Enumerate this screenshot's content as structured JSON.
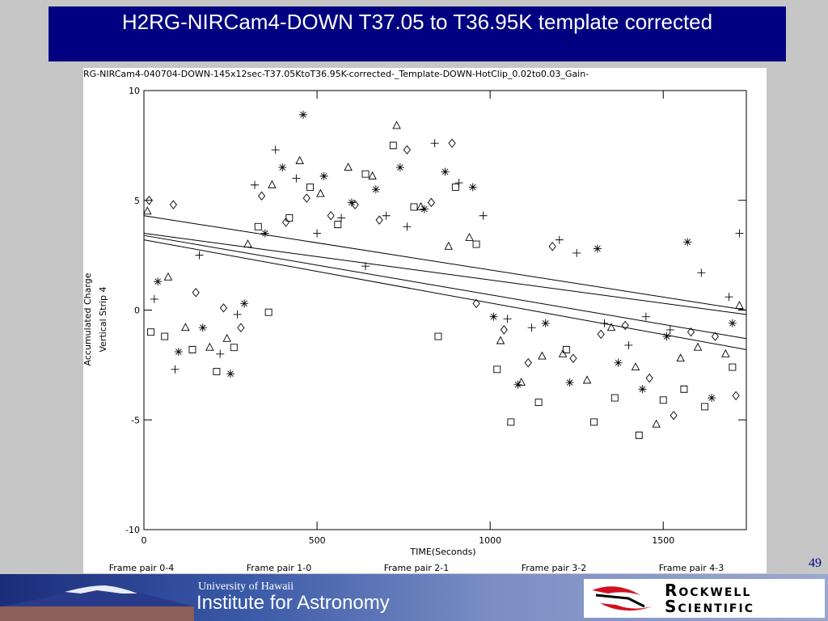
{
  "slide": {
    "title": "H2RG-NIRCam4-DOWN T37.05 to T36.95K template corrected",
    "page_number": "49"
  },
  "chart_data": {
    "type": "scatter",
    "subtitle": "RG-NIRCam4-040704-DOWN-145x12sec-T37.05KtoT36.95K-corrected-_Template-DOWN-HotClip_0.02to0.03_Gain-",
    "xlabel": "TIME(Seconds)",
    "ylabel": [
      "Accumulated Charge",
      "Vertical Strip 4"
    ],
    "xlim": [
      0,
      1740
    ],
    "ylim": [
      -10,
      10
    ],
    "xticks": [
      0,
      500,
      1000,
      1500
    ],
    "yticks": [
      -10,
      -5,
      0,
      5,
      10
    ],
    "color": "#000000",
    "series": [
      {
        "marker": "square",
        "x": [
          20,
          60,
          140,
          210,
          260,
          330,
          360,
          420,
          480,
          560,
          640,
          720,
          780,
          850,
          900,
          960,
          1020,
          1060,
          1140,
          1220,
          1300,
          1360,
          1430,
          1500,
          1560,
          1620,
          1700
        ],
        "values": [
          -1.0,
          -1.2,
          -1.8,
          -2.8,
          -1.7,
          3.8,
          -0.1,
          4.2,
          5.6,
          3.9,
          6.2,
          7.5,
          4.7,
          -1.2,
          5.6,
          3.0,
          -2.7,
          -5.1,
          -4.2,
          -1.8,
          -5.1,
          -4.0,
          -5.7,
          -4.1,
          -3.6,
          -4.4,
          -2.6
        ]
      },
      {
        "marker": "triangle",
        "x": [
          10,
          70,
          120,
          190,
          240,
          300,
          370,
          450,
          510,
          590,
          660,
          730,
          800,
          880,
          940,
          1030,
          1090,
          1150,
          1210,
          1280,
          1350,
          1420,
          1480,
          1550,
          1600,
          1680,
          1720
        ],
        "values": [
          4.5,
          1.5,
          -0.8,
          -1.7,
          -1.3,
          3.0,
          5.7,
          6.8,
          5.3,
          6.5,
          6.1,
          8.4,
          4.7,
          2.9,
          3.3,
          -1.4,
          -3.3,
          -2.1,
          -2.0,
          -3.2,
          -0.8,
          -2.6,
          -5.2,
          -2.2,
          -1.7,
          -2.0,
          0.2
        ]
      },
      {
        "marker": "diamond",
        "x": [
          15,
          85,
          150,
          230,
          280,
          340,
          410,
          470,
          540,
          610,
          680,
          760,
          830,
          890,
          960,
          1040,
          1110,
          1180,
          1240,
          1320,
          1390,
          1460,
          1530,
          1580,
          1650,
          1710
        ],
        "values": [
          5.0,
          4.8,
          0.8,
          0.1,
          -0.8,
          5.2,
          4.0,
          5.1,
          4.3,
          4.8,
          4.1,
          7.3,
          4.9,
          7.6,
          0.3,
          -0.9,
          -2.4,
          2.9,
          -2.2,
          -1.1,
          -0.7,
          -3.1,
          -4.8,
          -1.0,
          -1.2,
          -3.9
        ]
      },
      {
        "marker": "plus",
        "x": [
          30,
          90,
          160,
          220,
          270,
          320,
          380,
          440,
          500,
          570,
          640,
          700,
          760,
          840,
          910,
          980,
          1050,
          1120,
          1200,
          1250,
          1330,
          1400,
          1450,
          1520,
          1610,
          1690,
          1720
        ],
        "values": [
          0.5,
          -2.7,
          2.5,
          -2.0,
          -0.2,
          5.7,
          7.3,
          6.0,
          3.5,
          4.2,
          2.0,
          4.3,
          3.8,
          7.6,
          5.8,
          4.3,
          -0.4,
          -0.8,
          3.2,
          2.6,
          -0.6,
          -1.6,
          -0.3,
          -0.9,
          1.7,
          0.6,
          3.5
        ]
      },
      {
        "marker": "asterisk",
        "x": [
          40,
          100,
          170,
          250,
          290,
          350,
          400,
          460,
          520,
          600,
          670,
          740,
          810,
          870,
          950,
          1010,
          1080,
          1160,
          1230,
          1310,
          1370,
          1440,
          1510,
          1570,
          1640,
          1700
        ],
        "values": [
          1.3,
          -1.9,
          -0.8,
          -2.9,
          0.3,
          3.5,
          6.5,
          8.9,
          6.1,
          4.9,
          5.5,
          6.5,
          4.6,
          6.3,
          5.6,
          -0.3,
          -3.4,
          -0.6,
          -3.3,
          2.8,
          -2.4,
          -3.6,
          -1.2,
          3.1,
          -4.0,
          -0.6
        ]
      }
    ],
    "fit_lines": [
      {
        "x": [
          0,
          1740
        ],
        "values": [
          4.3,
          0.0
        ]
      },
      {
        "x": [
          0,
          1740
        ],
        "values": [
          3.5,
          -0.2
        ]
      },
      {
        "x": [
          0,
          1740
        ],
        "values": [
          3.4,
          -1.3
        ]
      },
      {
        "x": [
          0,
          1740
        ],
        "values": [
          3.2,
          -1.8
        ]
      }
    ],
    "frame_labels": [
      "Frame pair 0-4",
      "Frame pair 1-0",
      "Frame pair 2-1",
      "Frame pair 3-2",
      "Frame pair 4-3"
    ]
  },
  "footer": {
    "university": "University of Hawaii",
    "institute": "Institute for Astronomy",
    "company": [
      "Rockwell",
      "Scientific"
    ]
  }
}
